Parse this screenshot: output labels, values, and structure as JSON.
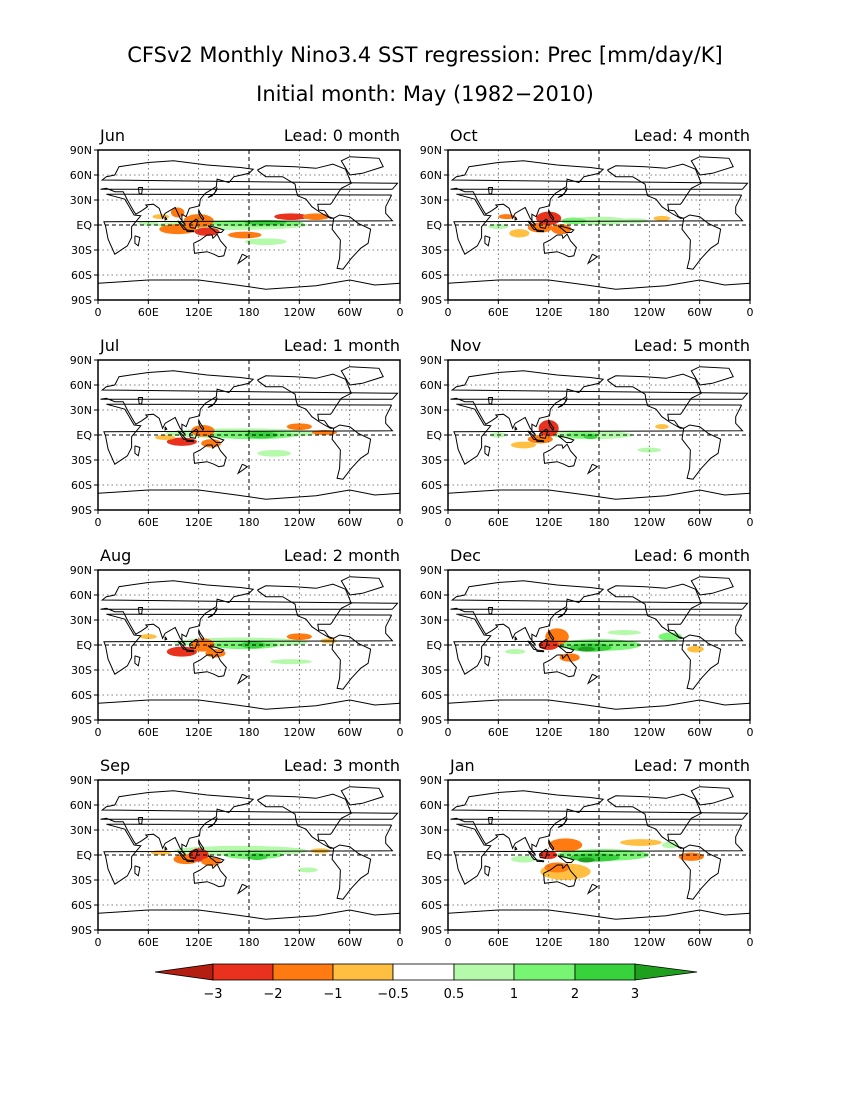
{
  "title": "CFSv2 Monthly Nino3.4 SST regression: Prec [mm/day/K]",
  "subtitle": "Initial month: May (1982−2010)",
  "axes": {
    "lat_labels": [
      "90N",
      "60N",
      "30N",
      "EQ",
      "30S",
      "60S",
      "90S"
    ],
    "lon_labels": [
      "0",
      "60E",
      "120E",
      "180",
      "120W",
      "60W",
      "0"
    ]
  },
  "panels": [
    {
      "month": "Jun",
      "lead": "Lead: 0 month"
    },
    {
      "month": "Oct",
      "lead": "Lead: 4 month"
    },
    {
      "month": "Jul",
      "lead": "Lead: 1 month"
    },
    {
      "month": "Nov",
      "lead": "Lead: 5 month"
    },
    {
      "month": "Aug",
      "lead": "Lead: 2 month"
    },
    {
      "month": "Dec",
      "lead": "Lead: 6 month"
    },
    {
      "month": "Sep",
      "lead": "Lead: 3 month"
    },
    {
      "month": "Jan",
      "lead": "Lead: 7 month"
    }
  ],
  "colorbar": {
    "labels": [
      "−3",
      "−2",
      "−1",
      "−0.5",
      "0.5",
      "1",
      "2",
      "3"
    ],
    "colors": [
      "#b41e10",
      "#e8321e",
      "#ff7a10",
      "#ffbf40",
      "#ffffff",
      "#b4faaa",
      "#78f573",
      "#37d23c",
      "#1ea01e"
    ]
  },
  "colors": {
    "dry_strong": "#e8321e",
    "dry_mid": "#ff7a10",
    "dry_weak": "#ffbf40",
    "wet_weak": "#b4faaa",
    "wet_mid": "#78f573",
    "wet_strong": "#37d23c",
    "wet_max": "#1ea01e"
  }
}
